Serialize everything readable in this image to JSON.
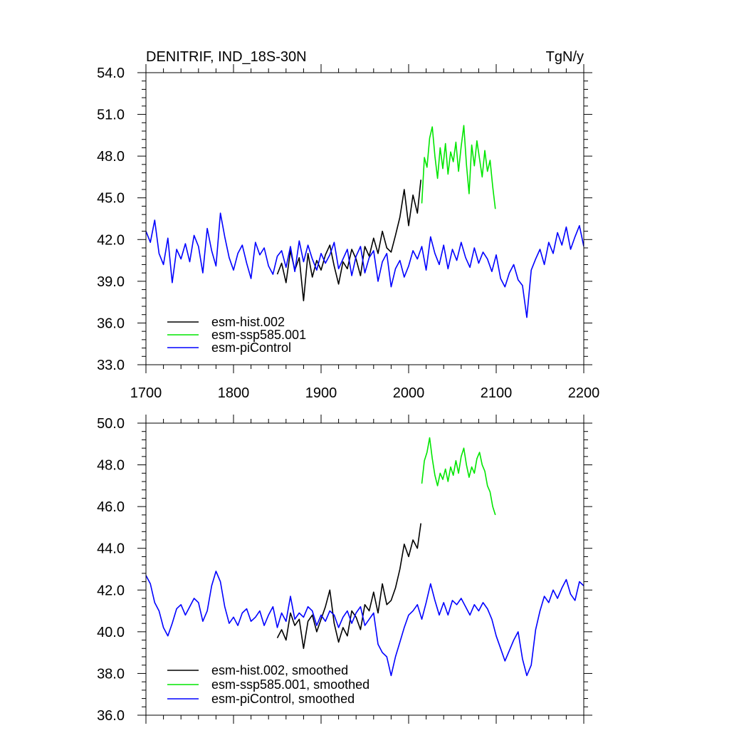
{
  "chart_data": [
    {
      "type": "line",
      "title": "DENITRIF, IND_18S-30N",
      "units": "TgN/y",
      "xlim": [
        1700,
        2200
      ],
      "ylim": [
        33.0,
        54.0
      ],
      "xticks": [
        1700,
        1800,
        1900,
        2000,
        2100,
        2200
      ],
      "xtick_labels": [
        "1700",
        "1800",
        "1900",
        "2000",
        "2100",
        "2200"
      ],
      "yticks": [
        33.0,
        36.0,
        39.0,
        42.0,
        45.0,
        48.0,
        51.0,
        54.0
      ],
      "ytick_labels": [
        "33.0",
        "36.0",
        "39.0",
        "42.0",
        "45.0",
        "48.0",
        "51.0",
        "54.0"
      ],
      "grid": false,
      "legend_position": "bottom-left",
      "series": [
        {
          "name": "esm-hist.002",
          "color": "#000000",
          "x": [
            1850,
            1855,
            1860,
            1865,
            1870,
            1875,
            1880,
            1885,
            1890,
            1895,
            1900,
            1905,
            1910,
            1915,
            1920,
            1925,
            1930,
            1935,
            1940,
            1945,
            1950,
            1955,
            1960,
            1965,
            1970,
            1975,
            1980,
            1985,
            1990,
            1995,
            2000,
            2005,
            2010,
            2014
          ],
          "y": [
            39.5,
            40.3,
            38.9,
            41.2,
            39.8,
            40.7,
            37.6,
            41.0,
            39.3,
            40.5,
            39.8,
            40.9,
            41.6,
            40.1,
            38.8,
            40.4,
            39.9,
            41.3,
            40.6,
            39.4,
            41.5,
            40.8,
            42.1,
            41.0,
            42.6,
            41.4,
            41.1,
            42.3,
            43.6,
            45.6,
            43.0,
            45.2,
            43.9,
            46.3
          ]
        },
        {
          "name": "esm-ssp585.001",
          "color": "#00e600",
          "x": [
            2015,
            2018,
            2021,
            2024,
            2027,
            2030,
            2033,
            2036,
            2039,
            2042,
            2045,
            2048,
            2051,
            2054,
            2057,
            2060,
            2063,
            2066,
            2069,
            2072,
            2075,
            2078,
            2081,
            2084,
            2087,
            2090,
            2093,
            2096,
            2099
          ],
          "y": [
            44.6,
            47.9,
            47.2,
            49.3,
            50.1,
            48.0,
            46.4,
            48.6,
            47.1,
            48.9,
            46.7,
            48.3,
            47.6,
            49.0,
            46.9,
            48.7,
            50.2,
            47.4,
            45.3,
            48.8,
            47.3,
            49.1,
            47.8,
            46.5,
            48.4,
            46.9,
            47.7,
            45.8,
            44.2
          ]
        },
        {
          "name": "esm-piControl",
          "color": "#0000ff",
          "x": [
            1700,
            1705,
            1710,
            1715,
            1720,
            1725,
            1730,
            1735,
            1740,
            1745,
            1750,
            1755,
            1760,
            1765,
            1770,
            1775,
            1780,
            1785,
            1790,
            1795,
            1800,
            1805,
            1810,
            1815,
            1820,
            1825,
            1830,
            1835,
            1840,
            1845,
            1850,
            1855,
            1860,
            1865,
            1870,
            1875,
            1880,
            1885,
            1890,
            1895,
            1900,
            1905,
            1910,
            1915,
            1920,
            1925,
            1930,
            1935,
            1940,
            1945,
            1950,
            1955,
            1960,
            1965,
            1970,
            1975,
            1980,
            1985,
            1990,
            1995,
            2000,
            2005,
            2010,
            2015,
            2020,
            2025,
            2030,
            2035,
            2040,
            2045,
            2050,
            2055,
            2060,
            2065,
            2070,
            2075,
            2080,
            2085,
            2090,
            2095,
            2100,
            2105,
            2110,
            2115,
            2120,
            2125,
            2130,
            2135,
            2140,
            2145,
            2150,
            2155,
            2160,
            2165,
            2170,
            2175,
            2180,
            2185,
            2190,
            2195,
            2200
          ],
          "y": [
            42.6,
            41.8,
            43.4,
            41.0,
            40.2,
            42.1,
            38.9,
            41.3,
            40.6,
            41.7,
            40.4,
            42.3,
            41.5,
            39.6,
            42.8,
            41.2,
            40.1,
            43.9,
            42.2,
            40.7,
            39.8,
            41.0,
            41.6,
            40.3,
            39.2,
            41.8,
            40.9,
            41.4,
            40.1,
            39.5,
            40.8,
            41.2,
            40.0,
            41.5,
            39.7,
            41.9,
            40.4,
            41.6,
            40.6,
            39.8,
            41.0,
            40.3,
            40.9,
            41.8,
            39.9,
            40.6,
            41.3,
            39.4,
            40.8,
            41.5,
            39.6,
            40.7,
            41.2,
            39.0,
            40.4,
            41.0,
            38.6,
            39.9,
            40.5,
            39.3,
            40.1,
            41.2,
            40.6,
            41.5,
            39.8,
            42.2,
            41.0,
            40.2,
            41.6,
            39.9,
            41.3,
            40.5,
            41.8,
            40.7,
            40.0,
            41.4,
            40.3,
            41.1,
            40.6,
            39.7,
            40.9,
            39.2,
            38.6,
            39.6,
            40.2,
            39.1,
            38.7,
            36.4,
            39.8,
            40.6,
            41.3,
            40.2,
            41.8,
            41.0,
            42.5,
            41.6,
            42.9,
            41.3,
            42.2,
            43.0,
            41.5
          ]
        }
      ]
    },
    {
      "type": "line",
      "title": "",
      "xlim": [
        1700,
        2200
      ],
      "ylim": [
        36.0,
        50.0
      ],
      "yticks": [
        36.0,
        38.0,
        40.0,
        42.0,
        44.0,
        46.0,
        48.0,
        50.0
      ],
      "ytick_labels": [
        "36.0",
        "38.0",
        "40.0",
        "42.0",
        "44.0",
        "46.0",
        "48.0",
        "50.0"
      ],
      "grid": false,
      "legend_position": "bottom-left",
      "series": [
        {
          "name": "esm-hist.002, smoothed",
          "color": "#000000",
          "x": [
            1850,
            1855,
            1860,
            1865,
            1870,
            1875,
            1880,
            1885,
            1890,
            1895,
            1900,
            1905,
            1910,
            1915,
            1920,
            1925,
            1930,
            1935,
            1940,
            1945,
            1950,
            1955,
            1960,
            1965,
            1970,
            1975,
            1980,
            1985,
            1990,
            1995,
            2000,
            2005,
            2010,
            2014
          ],
          "y": [
            39.7,
            40.1,
            39.6,
            40.9,
            40.3,
            40.6,
            39.2,
            40.5,
            40.8,
            40.0,
            40.6,
            41.2,
            42.0,
            40.4,
            39.5,
            40.2,
            39.8,
            41.0,
            40.7,
            40.1,
            41.3,
            41.0,
            41.9,
            40.9,
            42.3,
            41.3,
            41.5,
            42.1,
            43.0,
            44.2,
            43.6,
            44.4,
            44.0,
            45.2
          ]
        },
        {
          "name": "esm-ssp585.001, smoothed",
          "color": "#00e600",
          "x": [
            2015,
            2018,
            2021,
            2024,
            2027,
            2030,
            2033,
            2036,
            2039,
            2042,
            2045,
            2048,
            2051,
            2054,
            2057,
            2060,
            2063,
            2066,
            2069,
            2072,
            2075,
            2078,
            2081,
            2084,
            2087,
            2090,
            2093,
            2096,
            2099
          ],
          "y": [
            47.1,
            48.2,
            48.6,
            49.3,
            48.3,
            47.5,
            47.0,
            47.6,
            47.3,
            47.8,
            47.2,
            47.9,
            47.5,
            48.2,
            47.6,
            48.4,
            48.8,
            48.0,
            47.4,
            47.9,
            47.6,
            48.3,
            48.6,
            48.0,
            47.7,
            47.0,
            46.7,
            46.0,
            45.6
          ]
        },
        {
          "name": "esm-piControl, smoothed",
          "color": "#0000ff",
          "x": [
            1700,
            1705,
            1710,
            1715,
            1720,
            1725,
            1730,
            1735,
            1740,
            1745,
            1750,
            1755,
            1760,
            1765,
            1770,
            1775,
            1780,
            1785,
            1790,
            1795,
            1800,
            1805,
            1810,
            1815,
            1820,
            1825,
            1830,
            1835,
            1840,
            1845,
            1850,
            1855,
            1860,
            1865,
            1870,
            1875,
            1880,
            1885,
            1890,
            1895,
            1900,
            1905,
            1910,
            1915,
            1920,
            1925,
            1930,
            1935,
            1940,
            1945,
            1950,
            1955,
            1960,
            1965,
            1970,
            1975,
            1980,
            1985,
            1990,
            1995,
            2000,
            2005,
            2010,
            2015,
            2020,
            2025,
            2030,
            2035,
            2040,
            2045,
            2050,
            2055,
            2060,
            2065,
            2070,
            2075,
            2080,
            2085,
            2090,
            2095,
            2100,
            2105,
            2110,
            2115,
            2120,
            2125,
            2130,
            2135,
            2140,
            2145,
            2150,
            2155,
            2160,
            2165,
            2170,
            2175,
            2180,
            2185,
            2190,
            2195,
            2200
          ],
          "y": [
            42.7,
            42.3,
            41.4,
            41.0,
            40.2,
            39.8,
            40.4,
            41.1,
            41.3,
            40.8,
            41.2,
            41.6,
            41.4,
            40.5,
            41.0,
            42.2,
            42.9,
            42.4,
            41.2,
            40.4,
            40.7,
            40.3,
            40.9,
            41.1,
            40.5,
            40.7,
            41.0,
            40.3,
            40.8,
            41.2,
            40.2,
            40.9,
            40.5,
            41.7,
            40.6,
            40.9,
            40.7,
            41.2,
            41.0,
            40.3,
            40.8,
            40.5,
            41.0,
            40.8,
            40.2,
            40.7,
            41.0,
            40.4,
            40.9,
            41.2,
            40.3,
            40.6,
            40.9,
            39.4,
            39.0,
            38.8,
            37.9,
            38.8,
            39.5,
            40.2,
            40.8,
            41.0,
            41.3,
            40.6,
            41.4,
            42.3,
            41.5,
            40.8,
            41.4,
            40.8,
            41.5,
            41.3,
            41.6,
            41.2,
            40.8,
            41.3,
            41.0,
            41.4,
            41.1,
            40.6,
            39.8,
            39.2,
            38.6,
            39.1,
            39.6,
            40.0,
            38.7,
            37.9,
            38.4,
            40.1,
            41.0,
            41.7,
            41.4,
            42.0,
            41.6,
            42.1,
            42.5,
            41.8,
            41.5,
            42.4,
            42.2
          ]
        }
      ]
    }
  ]
}
